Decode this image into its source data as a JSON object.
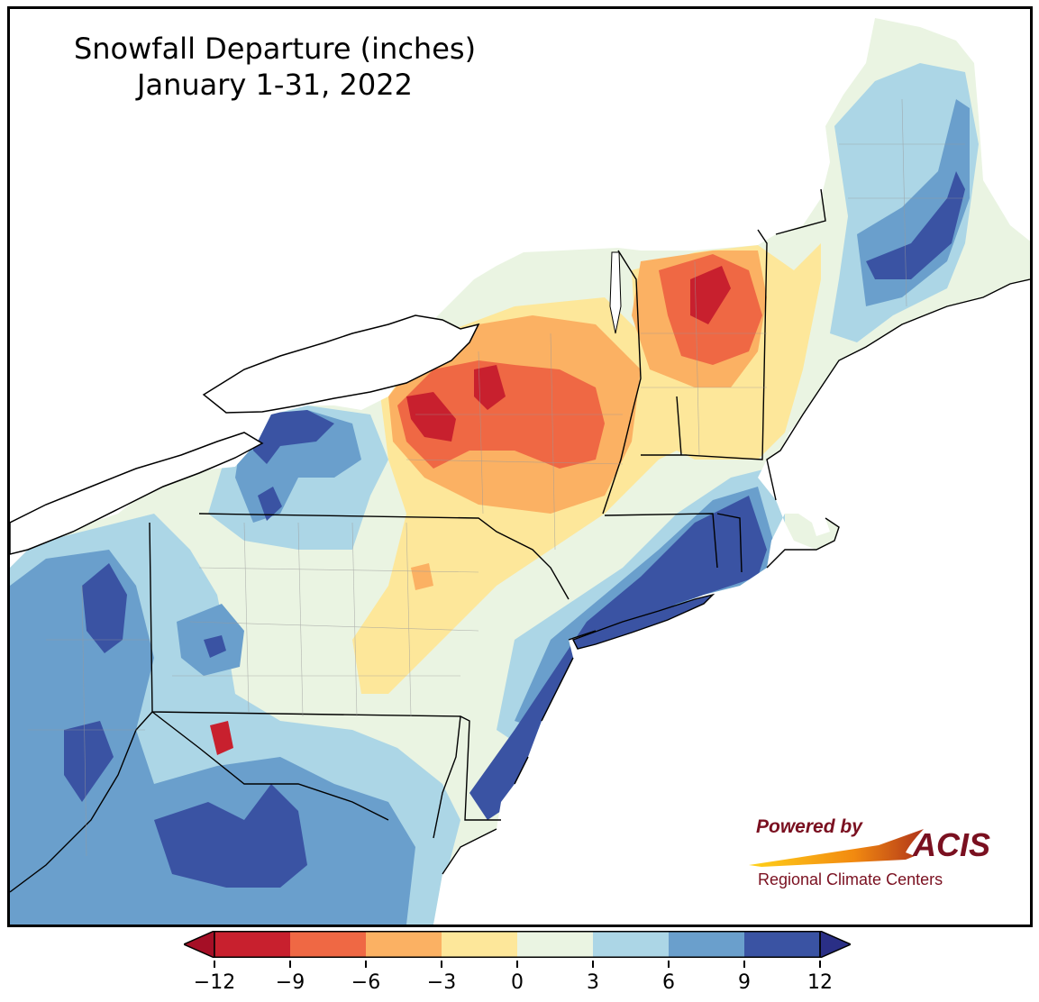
{
  "title": {
    "line1": "Snowfall Departure (inches)",
    "line2": "January 1-31, 2022"
  },
  "logo": {
    "powered_by": "Powered by",
    "brand": "ACIS",
    "org": "Regional Climate Centers"
  },
  "legend": {
    "ticks": [
      "−12",
      "−9",
      "−6",
      "−3",
      "0",
      "3",
      "6",
      "9",
      "12"
    ],
    "bins": [
      {
        "min": -12,
        "max": -9,
        "color": "#c8202e"
      },
      {
        "min": -9,
        "max": -6,
        "color": "#ef6844"
      },
      {
        "min": -6,
        "max": -3,
        "color": "#fbb163"
      },
      {
        "min": -3,
        "max": 0,
        "color": "#fde79a"
      },
      {
        "min": 0,
        "max": 3,
        "color": "#eaf4e2"
      },
      {
        "min": 3,
        "max": 6,
        "color": "#acd6e6"
      },
      {
        "min": 6,
        "max": 9,
        "color": "#6a9fcc"
      },
      {
        "min": 9,
        "max": 12,
        "color": "#3a53a3"
      }
    ],
    "under_color": "#a50f26",
    "over_color": "#2a2f86"
  },
  "colors": {
    "land_base": "#eaf4e2",
    "water": "#ffffff",
    "border": "#000000",
    "county": "#9a9a9a"
  }
}
